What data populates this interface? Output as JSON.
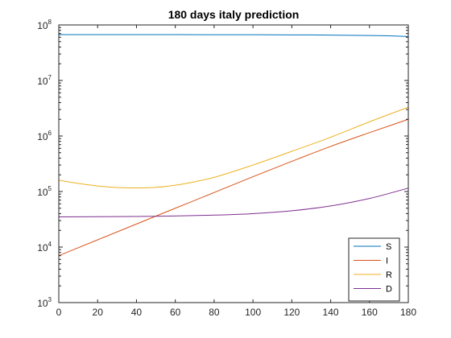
{
  "chart_data": {
    "type": "line",
    "title": "180 days italy prediction",
    "xlabel": "",
    "ylabel": "",
    "xlim": [
      0,
      180
    ],
    "ylim": [
      1000,
      100000000
    ],
    "yscale": "log",
    "grid": false,
    "legend_position": "bottom-right",
    "x_ticks": [
      "0",
      "20",
      "40",
      "60",
      "80",
      "100",
      "120",
      "140",
      "160",
      "180"
    ],
    "y_ticks": [
      {
        "base": "10",
        "exp": "3"
      },
      {
        "base": "10",
        "exp": "4"
      },
      {
        "base": "10",
        "exp": "5"
      },
      {
        "base": "10",
        "exp": "6"
      },
      {
        "base": "10",
        "exp": "7"
      },
      {
        "base": "10",
        "exp": "8"
      }
    ],
    "series": [
      {
        "name": "S",
        "color": "#0072BD",
        "x": [
          0,
          20,
          40,
          60,
          80,
          100,
          120,
          140,
          160,
          170,
          180
        ],
        "y": [
          67000000,
          67000000,
          66900000,
          66900000,
          66800000,
          66600000,
          66300000,
          65700000,
          64500000,
          63600000,
          62000000
        ]
      },
      {
        "name": "I",
        "color": "#D95319",
        "x": [
          0,
          20,
          40,
          60,
          80,
          100,
          120,
          140,
          160,
          180
        ],
        "y": [
          7000,
          13500,
          26000,
          50000,
          96000,
          185000,
          350000,
          650000,
          1150000,
          2000000
        ]
      },
      {
        "name": "R",
        "color": "#EDB120",
        "x": [
          0,
          10,
          20,
          30,
          40,
          50,
          60,
          70,
          80,
          100,
          120,
          140,
          160,
          180
        ],
        "y": [
          160000,
          140000,
          126000,
          118000,
          116000,
          119000,
          130000,
          150000,
          180000,
          300000,
          530000,
          950000,
          1800000,
          3300000
        ]
      },
      {
        "name": "D",
        "color": "#7E2F8E",
        "x": [
          0,
          20,
          40,
          60,
          80,
          100,
          120,
          140,
          160,
          180
        ],
        "y": [
          35000,
          35200,
          35600,
          36300,
          37600,
          40000,
          45000,
          55000,
          75000,
          115000
        ]
      }
    ]
  }
}
